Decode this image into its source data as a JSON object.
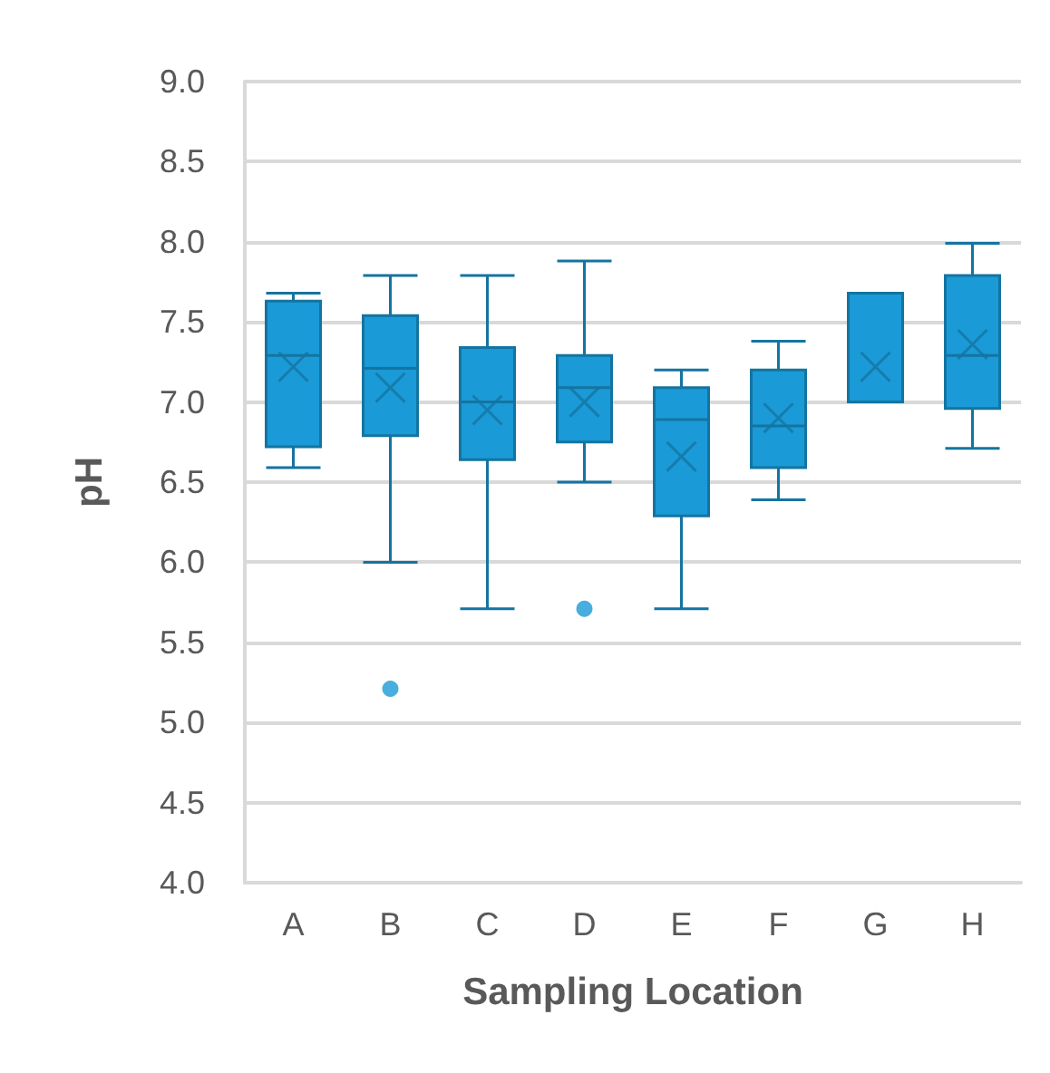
{
  "chart_data": {
    "type": "box",
    "xlabel": "Sampling Location",
    "ylabel": "pH",
    "categories": [
      "A",
      "B",
      "C",
      "D",
      "E",
      "F",
      "G",
      "H"
    ],
    "color": "#1a9ad6",
    "ylim": [
      4.0,
      9.0
    ],
    "yticks": [
      {
        "value": 4,
        "label": "4.0"
      },
      {
        "value": 4.5,
        "label": "4.5"
      },
      {
        "value": 5,
        "label": "5.0"
      },
      {
        "value": 5.5,
        "label": "5.5"
      },
      {
        "value": 6,
        "label": "6.0"
      },
      {
        "value": 6.5,
        "label": "6.5"
      },
      {
        "value": 7,
        "label": "7.0"
      },
      {
        "value": 7.5,
        "label": "7.5"
      },
      {
        "value": 8,
        "label": "8.0"
      },
      {
        "value": 8.5,
        "label": "8.5"
      },
      {
        "value": 9,
        "label": "9.0"
      }
    ],
    "grid": "y",
    "marker": "cross",
    "boxes": [
      {
        "low": 6.59,
        "q1": 6.72,
        "median": 7.29,
        "q3": 7.63,
        "high": 7.68,
        "mean": 7.22
      },
      {
        "low": 6.0,
        "q1": 6.79,
        "median": 7.21,
        "q3": 7.54,
        "high": 7.79,
        "mean": 7.09,
        "outliers": [
          5.21
        ]
      },
      {
        "low": 5.71,
        "q1": 6.64,
        "median": 7.0,
        "q3": 7.34,
        "high": 7.79,
        "mean": 6.95
      },
      {
        "low": 6.5,
        "q1": 6.75,
        "median": 7.09,
        "q3": 7.29,
        "high": 7.88,
        "mean": 7.0,
        "outliers": [
          5.71
        ]
      },
      {
        "low": 5.71,
        "q1": 6.29,
        "median": 6.89,
        "q3": 7.09,
        "high": 7.2,
        "mean": 6.66
      },
      {
        "low": 6.39,
        "q1": 6.59,
        "median": 6.85,
        "q3": 7.2,
        "high": 7.38,
        "mean": 6.9
      },
      {
        "low": 7.0,
        "q1": 7.0,
        "median": 7.0,
        "q3": 7.68,
        "high": 7.68,
        "mean": 7.22
      },
      {
        "low": 6.71,
        "q1": 6.96,
        "median": 7.29,
        "q3": 7.79,
        "high": 7.99,
        "mean": 7.36
      }
    ]
  }
}
